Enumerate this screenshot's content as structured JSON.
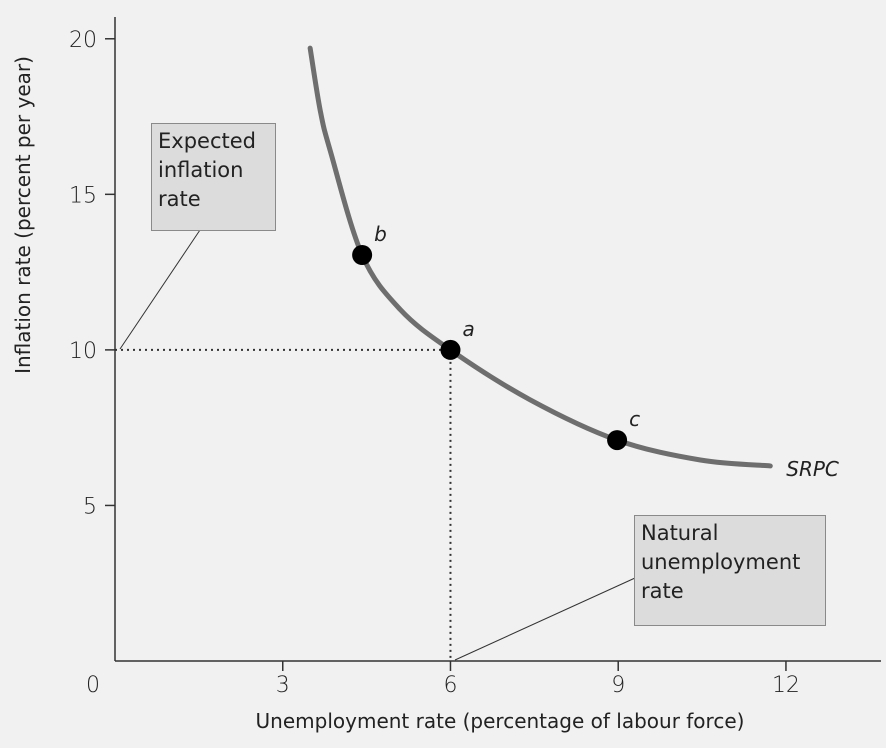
{
  "chart_data": {
    "type": "line",
    "x_label": "Unemployment rate (percentage of labour force)",
    "y_label": "Inflation rate (percent per year)",
    "xlim": [
      0,
      13.7
    ],
    "ylim": [
      0,
      20.7
    ],
    "xticks": [
      0,
      3,
      6,
      9,
      12
    ],
    "yticks": [
      5,
      10,
      15,
      20
    ],
    "series": [
      {
        "name": "SRPC",
        "color": "#6e6e6e",
        "x": [
          3.49,
          3.67,
          3.85,
          4.42,
          5.1,
          6.0,
          7.42,
          8.98,
          10.47,
          11.72
        ],
        "values": [
          19.7,
          17.7,
          16.4,
          13.05,
          11.3,
          10.0,
          8.4,
          7.1,
          6.46,
          6.27
        ]
      }
    ],
    "points": [
      {
        "label": "b",
        "x": 4.42,
        "y": 13.05
      },
      {
        "label": "a",
        "x": 6.0,
        "y": 10.0
      },
      {
        "label": "c",
        "x": 8.98,
        "y": 7.1
      }
    ],
    "annotations": [
      {
        "lines": [
          "Expected",
          "inflation",
          "rate"
        ]
      },
      {
        "lines": [
          "Natural",
          "unemployment",
          "rate"
        ]
      }
    ]
  }
}
